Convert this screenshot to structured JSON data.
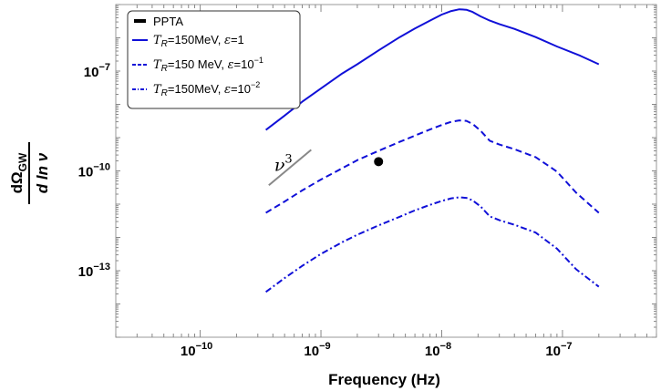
{
  "chart_data": {
    "type": "line",
    "xscale": "log",
    "yscale": "log",
    "xlabel": "Frequency (Hz)",
    "ylabel_num": "dΩ",
    "ylabel_sub": "GW",
    "ylabel_den": "d ln ν",
    "xlim": [
      2e-11,
      6e-07
    ],
    "ylim": [
      1e-15,
      1e-05
    ],
    "x_ticks": [
      {
        "value": 1e-10,
        "mant": "10",
        "exp": "−10"
      },
      {
        "value": 1e-09,
        "mant": "10",
        "exp": "−9"
      },
      {
        "value": 1e-08,
        "mant": "10",
        "exp": "−8"
      },
      {
        "value": 1e-07,
        "mant": "10",
        "exp": "−7"
      }
    ],
    "y_ticks": [
      {
        "value": 1e-13,
        "mant": "10",
        "exp": "−13"
      },
      {
        "value": 1e-10,
        "mant": "10",
        "exp": "−10"
      },
      {
        "value": 1e-07,
        "mant": "10",
        "exp": "−7"
      }
    ],
    "colors": {
      "series": "#1010d8",
      "ppta": "#000000",
      "slope": "#888888"
    },
    "legend": {
      "position": "top-left",
      "ppta_label": "PPTA",
      "items": [
        {
          "t": "T",
          "sub": "R",
          "mid": "=150MeV, ",
          "eps": "ε",
          "eq": "=",
          "exp_base": "1",
          "exp": ""
        },
        {
          "t": "T",
          "sub": "R",
          "mid": "=150 MeV, ",
          "eps": "ε",
          "eq": "=",
          "exp_base": "10",
          "exp": "−1"
        },
        {
          "t": "T",
          "sub": "R",
          "mid": "=150MeV, ",
          "eps": "ε",
          "eq": "=",
          "exp_base": "10",
          "exp": "−2"
        }
      ]
    },
    "series": [
      {
        "name": "T_R=150MeV, ε=1",
        "dash": "solid",
        "x": [
          3.5e-10,
          5e-10,
          7e-10,
          1e-09,
          1.5e-09,
          2e-09,
          3e-09,
          4.5e-09,
          6e-09,
          8e-09,
          1e-08,
          1.2e-08,
          1.4e-08,
          1.6e-08,
          1.8e-08,
          2.1e-08,
          2.5e-08,
          3e-08,
          4e-08,
          6e-08,
          9e-08,
          1.4e-07,
          2e-07
        ],
        "y": [
          1.7e-09,
          4.6e-09,
          1.2e-08,
          3e-08,
          8.5e-08,
          1.6e-07,
          4.2e-07,
          1.05e-06,
          1.9e-06,
          3.3e-06,
          5e-06,
          6.4e-06,
          7.2e-06,
          7e-06,
          6e-06,
          4.4e-06,
          3.3e-06,
          2.6e-06,
          1.85e-06,
          1.05e-06,
          5.5e-07,
          2.9e-07,
          1.6e-07
        ]
      },
      {
        "name": "T_R=150 MeV, ε=10⁻¹",
        "dash": "dashed",
        "x": [
          3.5e-10,
          5e-10,
          7e-10,
          1e-09,
          1.5e-09,
          2e-09,
          3e-09,
          4.5e-09,
          6e-09,
          8e-09,
          1e-08,
          1.2e-08,
          1.4e-08,
          1.6e-08,
          1.8e-08,
          2.1e-08,
          2.5e-08,
          3e-08,
          4e-08,
          6e-08,
          9e-08,
          1.3e-07,
          2e-07
        ],
        "y": [
          5.5e-12,
          1.2e-11,
          2.6e-11,
          5.5e-11,
          1.2e-10,
          2.1e-10,
          4e-10,
          7.5e-10,
          1.15e-09,
          1.75e-09,
          2.4e-09,
          3e-09,
          3.3e-09,
          3.2e-09,
          2.6e-09,
          1.6e-09,
          8e-10,
          6.2e-10,
          4.5e-10,
          2.6e-10,
          9.5e-11,
          2.2e-11,
          5.5e-12
        ]
      },
      {
        "name": "T_R=150MeV, ε=10⁻²",
        "dash": "dashdot",
        "x": [
          3.5e-10,
          5e-10,
          7e-10,
          1e-09,
          1.5e-09,
          2e-09,
          3e-09,
          4.5e-09,
          6e-09,
          8e-09,
          1e-08,
          1.2e-08,
          1.4e-08,
          1.6e-08,
          1.8e-08,
          2.1e-08,
          2.5e-08,
          3e-08,
          4e-08,
          6e-08,
          9e-08,
          1.3e-07,
          2e-07
        ],
        "y": [
          2.3e-14,
          6e-14,
          1.4e-13,
          3.2e-13,
          7.2e-13,
          1.2e-12,
          2.3e-12,
          4.2e-12,
          6.5e-12,
          9.5e-12,
          1.25e-11,
          1.5e-11,
          1.6e-11,
          1.55e-11,
          1.3e-11,
          8.5e-12,
          4.3e-12,
          3.3e-12,
          2.4e-12,
          1.4e-12,
          4.6e-13,
          1.1e-13,
          3.3e-14
        ]
      }
    ],
    "ppta_point": {
      "x": 3e-09,
      "y": 1.9e-10
    },
    "slope_annotation": {
      "label": "ν",
      "exp": "3",
      "from": {
        "x": 3.7e-10,
        "y": 3.7e-11
      },
      "to": {
        "x": 8.3e-10,
        "y": 4.3e-10
      }
    }
  }
}
